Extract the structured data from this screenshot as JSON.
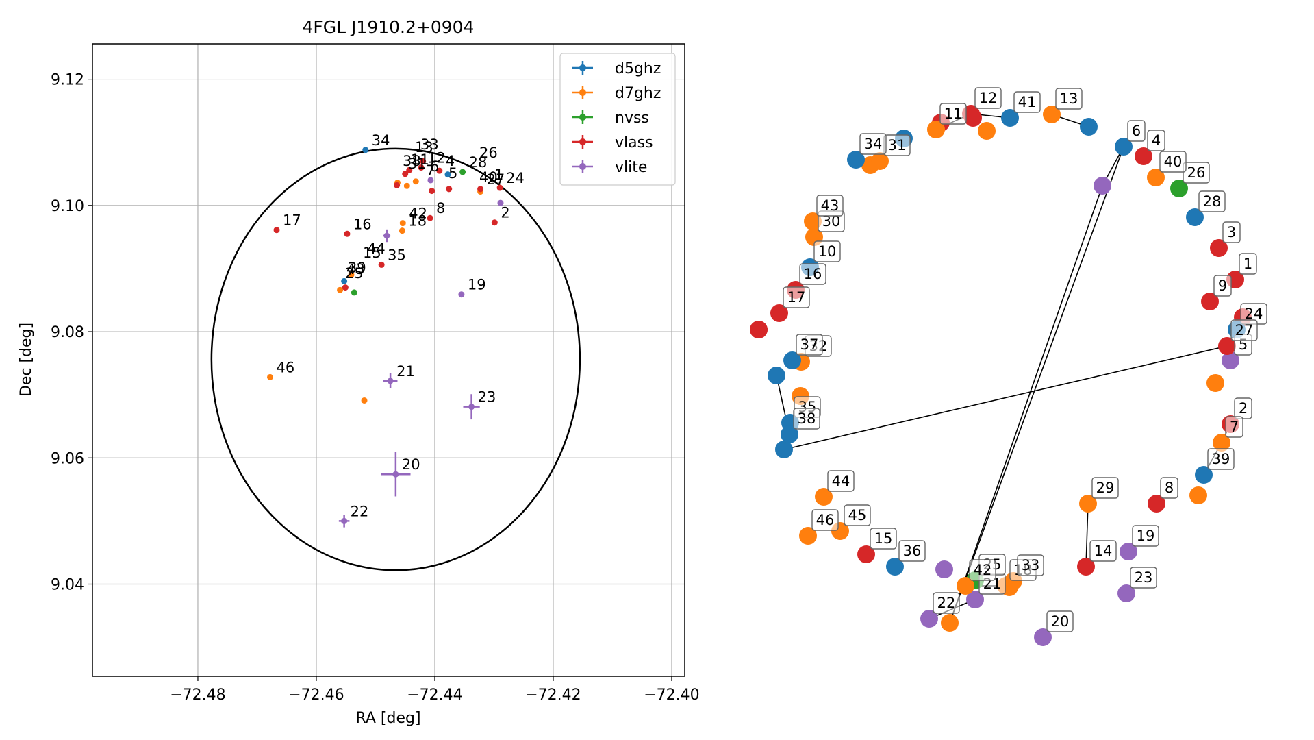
{
  "chart_data": [
    {
      "type": "scatter",
      "title": "4FGL J1910.2+0904",
      "xlabel": "RA [deg]",
      "ylabel": "Dec [deg]",
      "xlim": [
        -72.4978,
        -72.3978
      ],
      "ylim": [
        9.0254,
        9.1256
      ],
      "xticks": [
        -72.48,
        -72.46,
        -72.44,
        -72.42,
        -72.4
      ],
      "xtick_labels": [
        "−72.48",
        "−72.46",
        "−72.44",
        "−72.42",
        "−72.40"
      ],
      "yticks": [
        9.04,
        9.06,
        9.08,
        9.1,
        9.12
      ],
      "ytick_labels": [
        "9.04",
        "9.06",
        "9.08",
        "9.10",
        "9.12"
      ],
      "grid": true,
      "legend_position": "top-right",
      "colors": {
        "d5ghz": "#1f77b4",
        "d7ghz": "#ff7f0e",
        "nvss": "#2ca02c",
        "vlass": "#d62728",
        "vlite": "#9467bd"
      },
      "ellipse": {
        "ra_center": -72.4466,
        "dec_center": 9.0756,
        "ra_half_width": 0.0311,
        "dec_half_height": 0.0334
      },
      "series": [
        {
          "name": "d5ghz",
          "points": [
            {
              "x": -72.4517,
              "y": 9.1088,
              "label": "34"
            },
            {
              "x": -72.4378,
              "y": 9.1049,
              "label": ""
            },
            {
              "x": -72.4553,
              "y": 9.088,
              "label": ""
            }
          ]
        },
        {
          "name": "d7ghz",
          "points": [
            {
              "x": -72.4678,
              "y": 9.0728,
              "label": "46"
            },
            {
              "x": -72.4519,
              "y": 9.0691,
              "label": ""
            },
            {
              "x": -72.4454,
              "y": 9.0972,
              "label": "42"
            },
            {
              "x": -72.4455,
              "y": 9.096,
              "label": "18"
            },
            {
              "x": -72.4463,
              "y": 9.1036,
              "label": ""
            },
            {
              "x": -72.4447,
              "y": 9.1031,
              "label": ""
            },
            {
              "x": -72.4432,
              "y": 9.1038,
              "label": ""
            },
            {
              "x": -72.4323,
              "y": 9.1022,
              "label": ""
            },
            {
              "x": -72.456,
              "y": 9.0866,
              "label": ""
            },
            {
              "x": -72.4541,
              "y": 9.089,
              "label": ""
            }
          ]
        },
        {
          "name": "nvss",
          "points": [
            {
              "x": -72.4353,
              "y": 9.1053,
              "label": "28"
            },
            {
              "x": -72.4536,
              "y": 9.0862,
              "label": ""
            }
          ]
        },
        {
          "name": "vlass",
          "points": [
            {
              "x": -72.4667,
              "y": 9.0961,
              "label": "17"
            },
            {
              "x": -72.4548,
              "y": 9.0955,
              "label": "16"
            },
            {
              "x": -72.4408,
              "y": 9.098,
              "label": "8"
            },
            {
              "x": -72.4299,
              "y": 9.0973,
              "label": "2"
            },
            {
              "x": -72.429,
              "y": 9.1028,
              "label": "24"
            },
            {
              "x": -72.4323,
              "y": 9.1026,
              "label": "27"
            },
            {
              "x": -72.4376,
              "y": 9.1026,
              "label": ""
            },
            {
              "x": -72.4405,
              "y": 9.1023,
              "label": ""
            },
            {
              "x": -72.4423,
              "y": 9.106,
              "label": "12"
            },
            {
              "x": -72.4443,
              "y": 9.1056,
              "label": ""
            },
            {
              "x": -72.445,
              "y": 9.105,
              "label": ""
            },
            {
              "x": -72.4464,
              "y": 9.1032,
              "label": ""
            },
            {
              "x": -72.442,
              "y": 9.107,
              "label": ""
            },
            {
              "x": -72.4392,
              "y": 9.1055,
              "label": "4"
            },
            {
              "x": -72.449,
              "y": 9.0906,
              "label": "35"
            },
            {
              "x": -72.4551,
              "y": 9.087,
              "label": ""
            }
          ]
        },
        {
          "name": "vlite",
          "points": [
            {
              "x": -72.4407,
              "y": 9.104,
              "label": ""
            },
            {
              "x": -72.4289,
              "y": 9.1004,
              "label": ""
            },
            {
              "x": -72.4355,
              "y": 9.0859,
              "label": "19"
            },
            {
              "x": -72.4481,
              "y": 9.0952,
              "label": "",
              "xerr": 0.0006,
              "yerr": 0.001
            },
            {
              "x": -72.4475,
              "y": 9.0722,
              "label": "21",
              "xerr": 0.0012,
              "yerr": 0.0012
            },
            {
              "x": -72.4338,
              "y": 9.0681,
              "label": "23",
              "xerr": 0.0014,
              "yerr": 0.002
            },
            {
              "x": -72.4466,
              "y": 9.0574,
              "label": "20",
              "xerr": 0.0025,
              "yerr": 0.0035
            },
            {
              "x": -72.4553,
              "y": 9.05,
              "label": "22",
              "xerr": 0.0009,
              "yerr": 0.001
            }
          ]
        }
      ],
      "annotations": [
        "13",
        "7",
        "5",
        "6",
        "1",
        "26",
        "31",
        "11",
        "44",
        "33",
        "43",
        "15",
        "25",
        "38",
        "39",
        "40"
      ]
    },
    {
      "type": "network",
      "nodes": [
        {
          "label": "1",
          "color": "#d62728"
        },
        {
          "label": "2",
          "color": "#d62728"
        },
        {
          "label": "3",
          "color": "#d62728"
        },
        {
          "label": "4",
          "color": "#d62728"
        },
        {
          "label": "5",
          "color": "#9467bd"
        },
        {
          "label": "6",
          "color": "#1f77b4"
        },
        {
          "label": "7",
          "color": "#ff7f0e"
        },
        {
          "label": "8",
          "color": "#d62728"
        },
        {
          "label": "9",
          "color": "#d62728"
        },
        {
          "label": "10",
          "color": "#1f77b4"
        },
        {
          "label": "11",
          "color": "#ff7f0e"
        },
        {
          "label": "12",
          "color": "#d62728"
        },
        {
          "label": "13",
          "color": "#ff7f0e"
        },
        {
          "label": "14",
          "color": "#d62728"
        },
        {
          "label": "15",
          "color": "#d62728"
        },
        {
          "label": "16",
          "color": "#d62728"
        },
        {
          "label": "17",
          "color": "#d62728"
        },
        {
          "label": "18",
          "color": "#ff7f0e"
        },
        {
          "label": "19",
          "color": "#9467bd"
        },
        {
          "label": "20",
          "color": "#9467bd"
        },
        {
          "label": "21",
          "color": "#9467bd"
        },
        {
          "label": "22",
          "color": "#9467bd"
        },
        {
          "label": "23",
          "color": "#9467bd"
        },
        {
          "label": "24",
          "color": "#1f77b4"
        },
        {
          "label": "25",
          "color": "#2ca02c"
        },
        {
          "label": "26",
          "color": "#2ca02c"
        },
        {
          "label": "27",
          "color": "#d62728"
        },
        {
          "label": "28",
          "color": "#1f77b4"
        },
        {
          "label": "29",
          "color": "#ff7f0e"
        },
        {
          "label": "30",
          "color": "#ff7f0e"
        },
        {
          "label": "31",
          "color": "#ff7f0e"
        },
        {
          "label": "32",
          "color": "#ff7f0e"
        },
        {
          "label": "33",
          "color": "#ff7f0e"
        },
        {
          "label": "34",
          "color": "#1f77b4"
        },
        {
          "label": "35",
          "color": "#1f77b4"
        },
        {
          "label": "36",
          "color": "#1f77b4"
        },
        {
          "label": "37",
          "color": "#1f77b4"
        },
        {
          "label": "38",
          "color": "#1f77b4"
        },
        {
          "label": "39",
          "color": "#1f77b4"
        },
        {
          "label": "40",
          "color": "#ff7f0e"
        },
        {
          "label": "41",
          "color": "#1f77b4"
        },
        {
          "label": "42",
          "color": "#ff7f0e"
        },
        {
          "label": "43",
          "color": "#ff7f0e"
        },
        {
          "label": "44",
          "color": "#ff7f0e"
        },
        {
          "label": "45",
          "color": "#ff7f0e"
        },
        {
          "label": "46",
          "color": "#ff7f0e"
        }
      ],
      "extra_nodes": [
        "#d62728",
        "#1f77b4",
        "#9467bd",
        "#ff7f0e",
        "#d62728",
        "#1f77b4",
        "#ff7f0e",
        "#1f77b4",
        "#d62728",
        "#9467bd",
        "#ff7f0e",
        "#ff7f0e",
        "#1f77b4",
        "#d62728",
        "#ff7f0e",
        "#d62728",
        "#ff7f0e",
        "#ff7f0e"
      ],
      "edges": [
        [
          "6",
          "extra-2"
        ],
        [
          "extra-2",
          "extra-10"
        ],
        [
          "6",
          "extra-10"
        ],
        [
          "13",
          "extra-1"
        ],
        [
          "34",
          "31"
        ],
        [
          "24",
          "27"
        ],
        [
          "27",
          "extra-12"
        ],
        [
          "7",
          "39"
        ],
        [
          "2",
          "7"
        ],
        [
          "29",
          "14"
        ],
        [
          "22",
          "21"
        ],
        [
          "42",
          "18"
        ],
        [
          "18",
          "33"
        ],
        [
          "38",
          "extra-7"
        ],
        [
          "37",
          "32"
        ],
        [
          "11",
          "12"
        ],
        [
          "12",
          "41"
        ]
      ]
    }
  ]
}
